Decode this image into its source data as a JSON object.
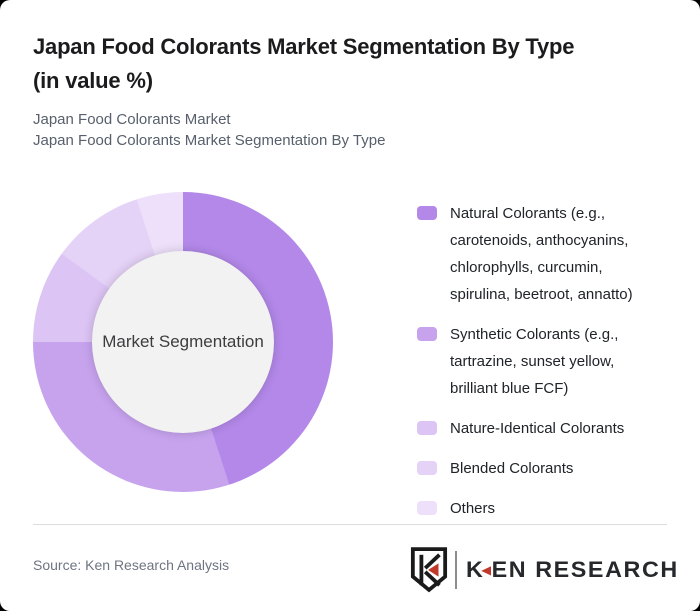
{
  "header": {
    "title": "Japan Food Colorants Market Segmentation By Type (in value %)",
    "subtitle_line1": "Japan Food Colorants Market",
    "subtitle_line2": "Japan Food Colorants Market Segmentation By Type"
  },
  "chart_data": {
    "type": "pie",
    "variant": "donut",
    "title": "Japan Food Colorants Market Segmentation By Type (in value %)",
    "center_label": "Market Segmentation",
    "legend_position": "right",
    "start_angle_deg": 0,
    "direction": "clockwise",
    "segments": [
      {
        "label": "Natural Colorants (e.g., carotenoids, anthocyanins, chlorophylls, curcumin, spirulina, beetroot, annatto)",
        "value": 45,
        "color": "#b388e9"
      },
      {
        "label": "Synthetic Colorants (e.g., tartrazine, sunset yellow, brilliant blue FCF)",
        "value": 30,
        "color": "#c7a3ee"
      },
      {
        "label": "Nature-Identical Colorants",
        "value": 10,
        "color": "#dcc4f4"
      },
      {
        "label": "Blended Colorants",
        "value": 10,
        "color": "#e5d2f7"
      },
      {
        "label": "Others",
        "value": 5,
        "color": "#eee0fa"
      }
    ],
    "hole_fill": "#f2f2f2"
  },
  "footer": {
    "source": "Source: Ken Research Analysis",
    "brand_k": "K",
    "brand_rest": "EN RESEARCH",
    "brand_accent_color": "#c0392b"
  }
}
